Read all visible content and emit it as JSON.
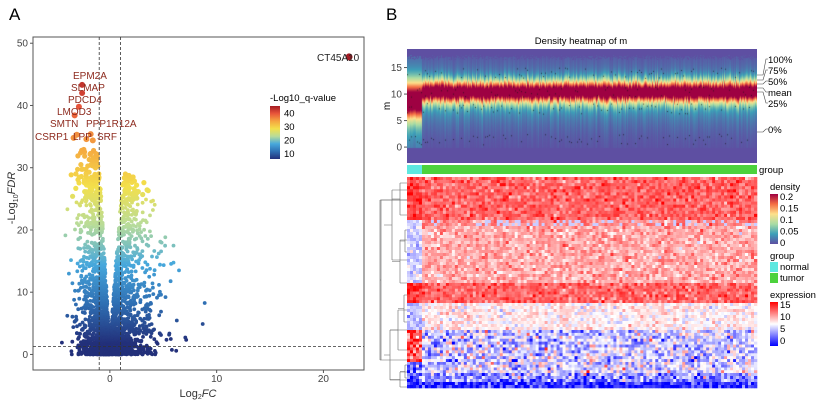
{
  "panel_labels": {
    "a": "A",
    "b": "B"
  },
  "chart_data": [
    {
      "type": "scatter",
      "panel": "A",
      "xlabel": {
        "base": "Log",
        "sub": "2",
        "italic": "FC"
      },
      "ylabel": {
        "prefix": "-Log",
        "sub": "10",
        "italic": "FDR"
      },
      "xlim": [
        -7.2,
        23.8
      ],
      "ylim": [
        -2.5,
        51
      ],
      "xticks": [
        0,
        10,
        20
      ],
      "yticks": [
        0,
        10,
        20,
        30,
        40,
        50
      ],
      "thresholds": {
        "log2fc": [
          -1,
          1
        ],
        "neg_log10_fdr": 1.3
      },
      "grid": false,
      "legend": {
        "title": "-Log10_q-value",
        "ticks": [
          40,
          30,
          20,
          10
        ],
        "position": "top-right"
      },
      "colors": [
        "#23307a",
        "#2f6fb3",
        "#47a8dc",
        "#b8dc9a",
        "#f3e04b",
        "#f5a640",
        "#e8553a",
        "#a51c24"
      ],
      "labeled_points": [
        {
          "label": "CT45A10",
          "x": 22.4,
          "y": 47.8
        },
        {
          "label": "EPM2A",
          "x": -2.6,
          "y": 43.3
        },
        {
          "label": "SLMAP",
          "x": -2.6,
          "y": 42.0
        },
        {
          "label": "PDCD4",
          "x": -2.9,
          "y": 39.8
        },
        {
          "label": "LMOD3",
          "x": -3.3,
          "y": 38.4
        },
        {
          "label": "SMTN",
          "x": -3.1,
          "y": 35.3
        },
        {
          "label": "PPP1R12A",
          "x": -1.8,
          "y": 35.4
        },
        {
          "label": "CSRP1",
          "x": -3.4,
          "y": 34.8
        },
        {
          "label": "LPP",
          "x": -2.2,
          "y": 34.6
        },
        {
          "label": "SRF",
          "x": -1.6,
          "y": 34.4
        }
      ]
    },
    {
      "type": "heatmap",
      "panel": "B",
      "title": "Density heatmap of m",
      "ylabel": "m",
      "yticks": [
        0,
        5,
        10,
        15
      ],
      "ylim": [
        -3,
        18.5
      ],
      "quantile_labels": [
        "100%",
        "75%",
        "50%",
        "mean",
        "25%",
        "0%"
      ],
      "density_legend": {
        "title": "density",
        "ticks": [
          "0.2",
          "0.15",
          "0.1",
          "0.05",
          "0"
        ],
        "colors": [
          "#5e4fa2",
          "#3d9fb8",
          "#a9dca4",
          "#fee08b",
          "#f46d43",
          "#9e0142"
        ]
      },
      "group_annotation": {
        "label": "group",
        "title": "group",
        "levels": [
          {
            "name": "normal",
            "color": "#5ee8e0"
          },
          {
            "name": "tumor",
            "color": "#4cd23c"
          }
        ]
      },
      "expression_legend": {
        "title": "expression",
        "ticks": [
          "15",
          "10",
          "5",
          "0"
        ],
        "colors": [
          "#0000ff",
          "#ffffff",
          "#ff0000"
        ],
        "range": [
          0,
          15
        ]
      },
      "row_bands": [
        {
          "normal": 13.5,
          "tumor": 12.0
        },
        {
          "normal": 6.0,
          "tumor": 11.0
        },
        {
          "normal": 6.0,
          "tumor": 10.0
        },
        {
          "normal": 13.5,
          "tumor": 12.0
        },
        {
          "normal": 5.5,
          "tumor": 8.0
        },
        {
          "normal": 12.5,
          "tumor": 6.0
        },
        {
          "normal": 3.0,
          "tumor": 6.5
        },
        {
          "normal": 3.5,
          "tumor": 4.0
        },
        {
          "normal": 1.0,
          "tumor": 1.0
        }
      ]
    }
  ]
}
